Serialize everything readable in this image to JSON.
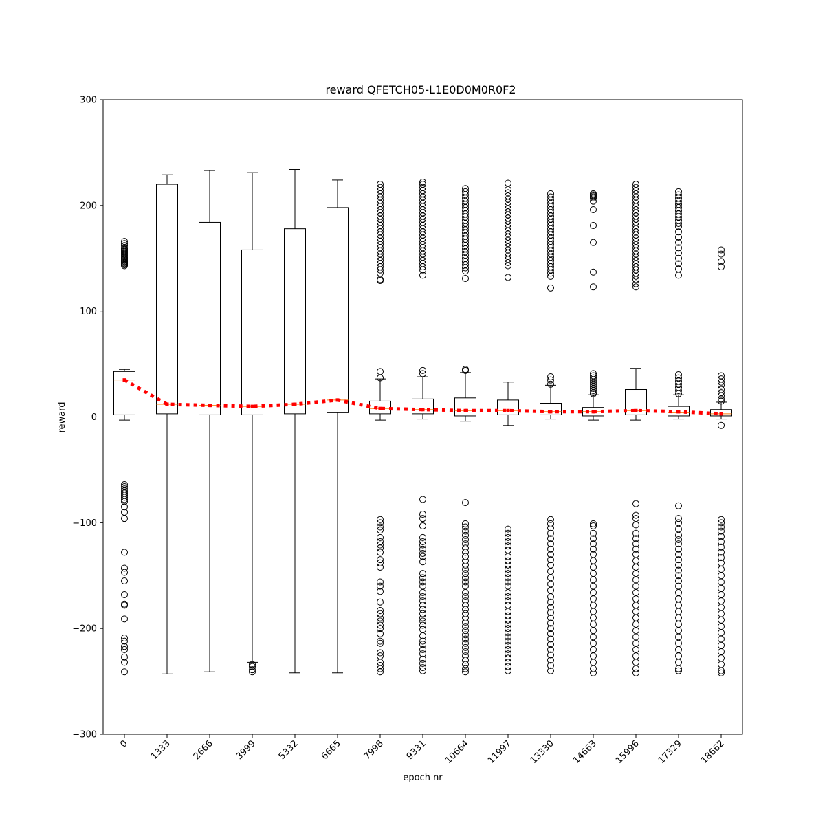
{
  "chart_data": {
    "type": "box",
    "title": "reward QFETCH05-L1E0D0M0R0F2",
    "xlabel": "epoch nr",
    "ylabel": "reward",
    "ylim": [
      -300,
      300
    ],
    "yticks": [
      -300,
      -200,
      -100,
      0,
      100,
      200,
      300
    ],
    "ytick_labels": [
      "−300",
      "−200",
      "−100",
      "0",
      "100",
      "200",
      "300"
    ],
    "categories": [
      "0",
      "1333",
      "2666",
      "3999",
      "5332",
      "6665",
      "7998",
      "9331",
      "10664",
      "11997",
      "13330",
      "14663",
      "15996",
      "17329",
      "18662"
    ],
    "grid": false,
    "legend": "none",
    "colors": {
      "box": "#000000",
      "median": "#ff7f0e",
      "mean_line": "#ff0000",
      "mean_marker": "#ff0000"
    },
    "boxes": [
      {
        "label": "0",
        "q1": 2,
        "median": 35,
        "q3": 43,
        "whislo": -3,
        "whishi": 45,
        "fliers": [
          166,
          164,
          162,
          160,
          159,
          158,
          157,
          156,
          155,
          154,
          153,
          152,
          151,
          150,
          149,
          148,
          147,
          146,
          145,
          144,
          143,
          -64,
          -66,
          -68,
          -70,
          -72,
          -74,
          -76,
          -78,
          -80,
          -85,
          -90,
          -96,
          -128,
          -143,
          -147,
          -155,
          -168,
          -177,
          -178,
          -191,
          -209,
          -212,
          -217,
          -220,
          -227,
          -232,
          -241
        ]
      },
      {
        "label": "1333",
        "q1": 3,
        "median": 12,
        "q3": 220,
        "whislo": -243,
        "whishi": 229,
        "fliers": []
      },
      {
        "label": "2666",
        "q1": 2,
        "median": 11,
        "q3": 184,
        "whislo": -241,
        "whishi": 233,
        "fliers": []
      },
      {
        "label": "3999",
        "q1": 2,
        "median": 10,
        "q3": 158,
        "whislo": -232,
        "whishi": 231,
        "fliers": [
          -234,
          -236,
          -239,
          -241
        ]
      },
      {
        "label": "5332",
        "q1": 3,
        "median": 12,
        "q3": 178,
        "whislo": -242,
        "whishi": 234,
        "fliers": []
      },
      {
        "label": "6665",
        "q1": 4,
        "median": 16,
        "q3": 198,
        "whislo": -242,
        "whishi": 224,
        "fliers": []
      },
      {
        "label": "7998",
        "q1": 3,
        "median": 8,
        "q3": 15,
        "whislo": -3,
        "whishi": 36,
        "fliers": [
          220,
          217,
          214,
          211,
          208,
          205,
          202,
          199,
          196,
          193,
          190,
          187,
          184,
          181,
          178,
          175,
          172,
          169,
          166,
          163,
          160,
          157,
          154,
          151,
          148,
          145,
          142,
          139,
          136,
          130,
          129,
          43,
          37,
          -97,
          -100,
          -104,
          -107,
          -114,
          -118,
          -121,
          -124,
          -128,
          -135,
          -138,
          -142,
          -156,
          -160,
          -165,
          -175,
          -183,
          -186,
          -190,
          -193,
          -197,
          -200,
          -205,
          -212,
          -214,
          -223,
          -226,
          -232,
          -235,
          -238,
          -241
        ]
      },
      {
        "label": "9331",
        "q1": 3,
        "median": 7,
        "q3": 17,
        "whislo": -2,
        "whishi": 38,
        "fliers": [
          222,
          220,
          217,
          214,
          211,
          208,
          205,
          202,
          199,
          196,
          193,
          190,
          187,
          184,
          181,
          178,
          175,
          172,
          169,
          166,
          163,
          160,
          157,
          154,
          151,
          148,
          145,
          142,
          139,
          134,
          44,
          41,
          -78,
          -92,
          -96,
          -103,
          -114,
          -118,
          -121,
          -125,
          -129,
          -132,
          -137,
          -148,
          -152,
          -156,
          -160,
          -166,
          -170,
          -174,
          -178,
          -182,
          -186,
          -190,
          -193,
          -197,
          -201,
          -207,
          -212,
          -215,
          -220,
          -224,
          -229,
          -233,
          -237,
          -240
        ]
      },
      {
        "label": "10664",
        "q1": 1,
        "median": 6,
        "q3": 18,
        "whislo": -4,
        "whishi": 42,
        "fliers": [
          216,
          213,
          210,
          207,
          204,
          201,
          198,
          195,
          192,
          189,
          186,
          183,
          180,
          177,
          174,
          171,
          168,
          165,
          162,
          159,
          156,
          153,
          150,
          147,
          144,
          141,
          138,
          131,
          45,
          44,
          -81,
          -101,
          -104,
          -108,
          -112,
          -116,
          -120,
          -124,
          -128,
          -132,
          -136,
          -140,
          -144,
          -148,
          -152,
          -156,
          -160,
          -166,
          -170,
          -174,
          -178,
          -182,
          -186,
          -190,
          -194,
          -198,
          -202,
          -206,
          -210,
          -214,
          -218,
          -222,
          -226,
          -230,
          -234,
          -238,
          -241
        ]
      },
      {
        "label": "11997",
        "q1": 2,
        "median": 6,
        "q3": 16,
        "whislo": -8,
        "whishi": 33,
        "fliers": [
          221,
          215,
          212,
          209,
          206,
          203,
          200,
          197,
          194,
          191,
          188,
          185,
          182,
          179,
          176,
          173,
          170,
          167,
          164,
          161,
          158,
          155,
          152,
          149,
          146,
          143,
          132,
          -106,
          -110,
          -114,
          -118,
          -122,
          -126,
          -132,
          -136,
          -140,
          -144,
          -148,
          -152,
          -156,
          -160,
          -166,
          -170,
          -174,
          -178,
          -184,
          -188,
          -192,
          -196,
          -200,
          -204,
          -208,
          -212,
          -216,
          -220,
          -224,
          -228,
          -232,
          -236,
          -240
        ]
      },
      {
        "label": "13330",
        "q1": 2,
        "median": 5,
        "q3": 13,
        "whislo": -2,
        "whishi": 30,
        "fliers": [
          211,
          208,
          205,
          202,
          199,
          196,
          193,
          190,
          187,
          184,
          181,
          178,
          175,
          172,
          169,
          166,
          163,
          160,
          157,
          154,
          151,
          148,
          145,
          142,
          139,
          136,
          133,
          122,
          38,
          35,
          31,
          -97,
          -101,
          -105,
          -110,
          -115,
          -120,
          -125,
          -130,
          -135,
          -140,
          -146,
          -152,
          -158,
          -164,
          -170,
          -175,
          -180,
          -185,
          -190,
          -195,
          -200,
          -205,
          -210,
          -215,
          -220,
          -225,
          -230,
          -235,
          -240
        ]
      },
      {
        "label": "14663",
        "q1": 1,
        "median": 5,
        "q3": 9,
        "whislo": -3,
        "whishi": 21,
        "fliers": [
          211,
          210,
          209,
          208,
          207,
          204,
          196,
          181,
          165,
          137,
          123,
          41,
          39,
          37,
          35,
          33,
          31,
          29,
          27,
          25,
          23,
          22,
          -101,
          -103,
          -110,
          -115,
          -120,
          -125,
          -130,
          -136,
          -142,
          -148,
          -154,
          -160,
          -166,
          -172,
          -178,
          -184,
          -190,
          -196,
          -202,
          -208,
          -214,
          -220,
          -226,
          -232,
          -238,
          -242
        ]
      },
      {
        "label": "15996",
        "q1": 2,
        "median": 6,
        "q3": 26,
        "whislo": -3,
        "whishi": 46,
        "fliers": [
          220,
          217,
          214,
          211,
          208,
          205,
          202,
          199,
          196,
          193,
          190,
          187,
          184,
          181,
          178,
          175,
          172,
          169,
          166,
          163,
          160,
          157,
          154,
          151,
          148,
          145,
          142,
          139,
          136,
          133,
          130,
          126,
          123,
          -82,
          -93,
          -96,
          -102,
          -110,
          -115,
          -120,
          -125,
          -130,
          -136,
          -142,
          -148,
          -154,
          -160,
          -166,
          -172,
          -178,
          -184,
          -190,
          -196,
          -202,
          -208,
          -214,
          -220,
          -226,
          -232,
          -238,
          -242
        ]
      },
      {
        "label": "17329",
        "q1": 1,
        "median": 4,
        "q3": 10,
        "whislo": -2,
        "whishi": 21,
        "fliers": [
          213,
          210,
          207,
          204,
          201,
          198,
          195,
          192,
          189,
          186,
          183,
          180,
          175,
          170,
          165,
          160,
          155,
          150,
          145,
          140,
          134,
          40,
          37,
          34,
          31,
          28,
          25,
          22,
          -84,
          -96,
          -100,
          -106,
          -112,
          -116,
          -120,
          -125,
          -130,
          -135,
          -140,
          -145,
          -150,
          -155,
          -160,
          -166,
          -172,
          -178,
          -184,
          -190,
          -196,
          -202,
          -208,
          -214,
          -220,
          -226,
          -232,
          -238,
          -240
        ]
      },
      {
        "label": "18662",
        "q1": 1,
        "median": 3,
        "q3": 7,
        "whislo": -2,
        "whishi": 14,
        "fliers": [
          158,
          154,
          147,
          142,
          39,
          36,
          33,
          30,
          26,
          23,
          20,
          17,
          15,
          -8,
          -97,
          -100,
          -104,
          -108,
          -113,
          -118,
          -123,
          -128,
          -133,
          -138,
          -144,
          -150,
          -156,
          -162,
          -168,
          -174,
          -180,
          -186,
          -192,
          -198,
          -204,
          -210,
          -216,
          -222,
          -228,
          -234,
          -240,
          -242
        ]
      }
    ],
    "mean_series": {
      "style": "dotted",
      "values": [
        35,
        12,
        11,
        10,
        12,
        16,
        8,
        7,
        6,
        6,
        5,
        5,
        6,
        5,
        3
      ]
    }
  }
}
